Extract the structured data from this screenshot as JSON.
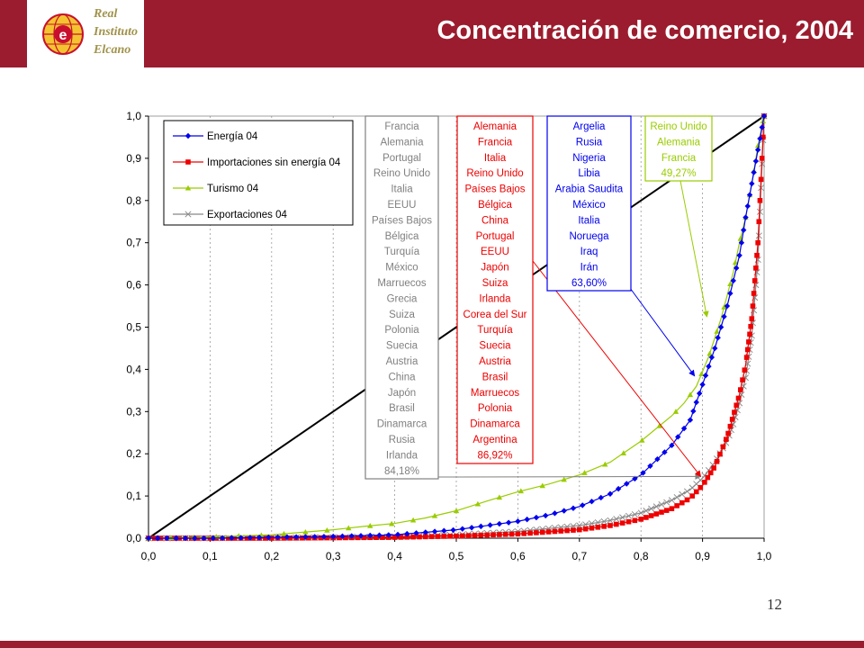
{
  "header": {
    "title": "Concentración de comercio, 2004",
    "logo_lines": [
      "Real",
      "Instituto",
      "Elcano"
    ],
    "logo_letter": "e",
    "background_color": "#9b1c2e"
  },
  "page_number": "12",
  "chart_data": {
    "type": "line",
    "xlim": [
      0,
      1
    ],
    "ylim": [
      0,
      1
    ],
    "x_ticks": [
      "0,0",
      "0,1",
      "0,2",
      "0,3",
      "0,4",
      "0,5",
      "0,6",
      "0,7",
      "0,8",
      "0,9",
      "1,0"
    ],
    "y_ticks": [
      "0,0",
      "0,1",
      "0,2",
      "0,3",
      "0,4",
      "0,5",
      "0,6",
      "0,7",
      "0,8",
      "0,9",
      "1,0"
    ],
    "grid": "vertical-dashed",
    "legend_position": "top-left",
    "equality_line": {
      "x": [
        0,
        1
      ],
      "y": [
        0,
        1
      ],
      "color": "#000000"
    },
    "series": [
      {
        "name": "Energía 04",
        "color": "#0000ee",
        "marker": "diamond",
        "x": [
          0,
          0.1,
          0.2,
          0.3,
          0.4,
          0.5,
          0.55,
          0.6,
          0.65,
          0.7,
          0.75,
          0.8,
          0.85,
          0.88,
          0.9,
          0.92,
          0.94,
          0.96,
          0.97,
          0.98,
          0.99,
          1.0
        ],
        "y": [
          0,
          0,
          0.002,
          0.004,
          0.008,
          0.02,
          0.03,
          0.04,
          0.055,
          0.075,
          0.105,
          0.15,
          0.22,
          0.28,
          0.364,
          0.45,
          0.55,
          0.67,
          0.76,
          0.84,
          0.92,
          1.0
        ]
      },
      {
        "name": "Importaciones sin energía 04",
        "color": "#ee0000",
        "marker": "square",
        "x": [
          0,
          0.1,
          0.2,
          0.3,
          0.4,
          0.5,
          0.6,
          0.7,
          0.75,
          0.8,
          0.85,
          0.88,
          0.9,
          0.92,
          0.94,
          0.95,
          0.96,
          0.97,
          0.98,
          0.99,
          1.0
        ],
        "y": [
          0,
          0,
          0,
          0.001,
          0.002,
          0.005,
          0.01,
          0.02,
          0.03,
          0.045,
          0.07,
          0.095,
          0.125,
          0.17,
          0.24,
          0.29,
          0.34,
          0.41,
          0.52,
          0.7,
          1.0
        ]
      },
      {
        "name": "Turismo 04",
        "color": "#99cc00",
        "marker": "triangle",
        "x": [
          0,
          0.1,
          0.2,
          0.3,
          0.35,
          0.4,
          0.45,
          0.5,
          0.55,
          0.6,
          0.65,
          0.7,
          0.75,
          0.8,
          0.85,
          0.87,
          0.89,
          0.91,
          0.93,
          0.95,
          0.96,
          0.97,
          0.98,
          0.99,
          1.0
        ],
        "y": [
          0,
          0.003,
          0.008,
          0.02,
          0.028,
          0.035,
          0.048,
          0.065,
          0.088,
          0.11,
          0.128,
          0.15,
          0.18,
          0.23,
          0.29,
          0.32,
          0.36,
          0.43,
          0.52,
          0.63,
          0.7,
          0.76,
          0.84,
          0.93,
          1.0
        ]
      },
      {
        "name": "Exportaciones 04",
        "color": "#888888",
        "marker": "x",
        "x": [
          0,
          0.1,
          0.2,
          0.3,
          0.4,
          0.5,
          0.6,
          0.7,
          0.75,
          0.8,
          0.85,
          0.88,
          0.9,
          0.92,
          0.94,
          0.95,
          0.96,
          0.97,
          0.98,
          0.99,
          1.0
        ],
        "y": [
          0,
          0,
          0.001,
          0.002,
          0.004,
          0.008,
          0.016,
          0.03,
          0.042,
          0.06,
          0.09,
          0.115,
          0.142,
          0.18,
          0.23,
          0.27,
          0.32,
          0.38,
          0.48,
          0.66,
          1.0
        ]
      }
    ],
    "annotation_boxes": [
      {
        "color": "#808080",
        "items": [
          "Francia",
          "Alemania",
          "Portugal",
          "Reino Unido",
          "Italia",
          "EEUU",
          "Países Bajos",
          "Bélgica",
          "Turquía",
          "México",
          "Marruecos",
          "Grecia",
          "Suiza",
          "Polonia",
          "Suecia",
          "Austria",
          "China",
          "Japón",
          "Brasil",
          "Dinamarca",
          "Rusia",
          "Irlanda",
          "84,18%"
        ],
        "arrow_to": [
          0.9,
          0.142
        ]
      },
      {
        "color": "#ee0000",
        "items": [
          "Alemania",
          "Francia",
          "Italia",
          "Reino Unido",
          "Países Bajos",
          "Bélgica",
          "China",
          "Portugal",
          "EEUU",
          "Japón",
          "Suiza",
          "Irlanda",
          "Corea del Sur",
          "Turquía",
          "Suecia",
          "Austria",
          "Brasil",
          "Marruecos",
          "Polonia",
          "Dinamarca",
          "Argentina",
          "86,92%"
        ],
        "arrow_to": [
          0.9,
          0.142
        ]
      },
      {
        "color": "#0000ee",
        "items": [
          "Argelia",
          "Rusia",
          "Nigeria",
          "Libia",
          "Arabia Saudita",
          "México",
          "Italia",
          "Noruega",
          "Iraq",
          "Irán",
          "63,60%"
        ],
        "arrow_to": [
          0.89,
          0.38
        ]
      },
      {
        "color": "#99cc00",
        "items": [
          "Reino Unido",
          "Alemania",
          "Francia",
          "49,27%"
        ],
        "arrow_to": [
          0.91,
          0.52
        ]
      }
    ]
  }
}
